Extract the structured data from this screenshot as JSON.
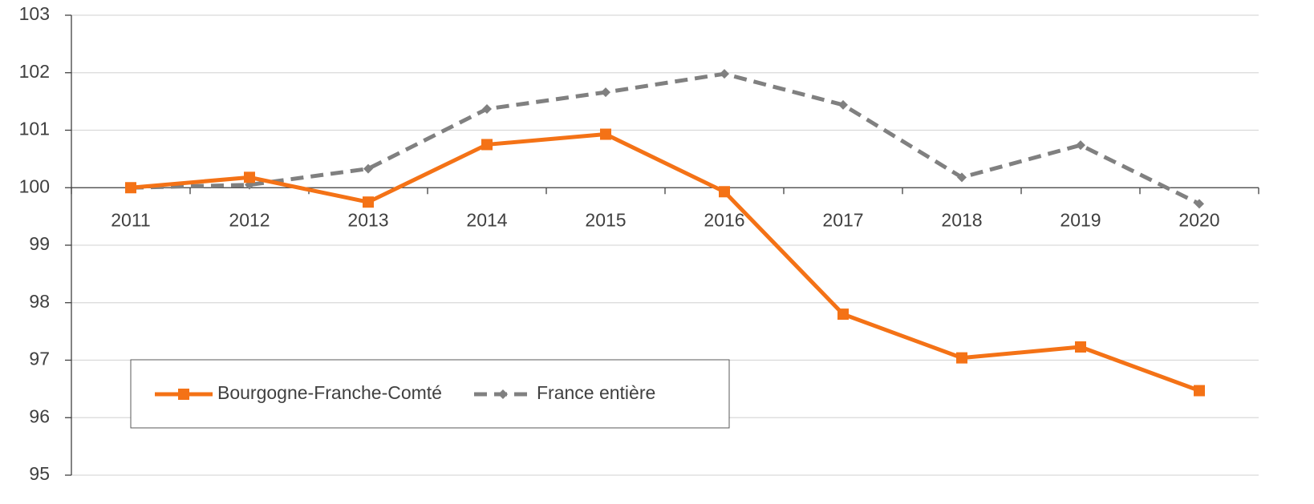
{
  "chart_data": {
    "type": "line",
    "categories": [
      "2011",
      "2012",
      "2013",
      "2014",
      "2015",
      "2016",
      "2017",
      "2018",
      "2019",
      "2020"
    ],
    "series": [
      {
        "name": "Bourgogne-Franche-Comté",
        "color": "#f47216",
        "line_style": "solid",
        "marker": "square",
        "values": [
          100,
          100.18,
          99.75,
          100.75,
          100.93,
          99.93,
          97.8,
          97.04,
          97.23,
          96.47
        ]
      },
      {
        "name": "France entière",
        "color": "#808080",
        "line_style": "dashed",
        "marker": "diamond",
        "values": [
          100,
          100.05,
          100.33,
          101.37,
          101.66,
          101.98,
          101.44,
          100.18,
          100.74,
          99.72
        ]
      }
    ],
    "ylim": [
      95,
      103
    ],
    "yticks": [
      95,
      96,
      97,
      98,
      99,
      100,
      101,
      102,
      103
    ],
    "x_axis_crosses": 100,
    "grid": true,
    "legend": "lower left"
  }
}
